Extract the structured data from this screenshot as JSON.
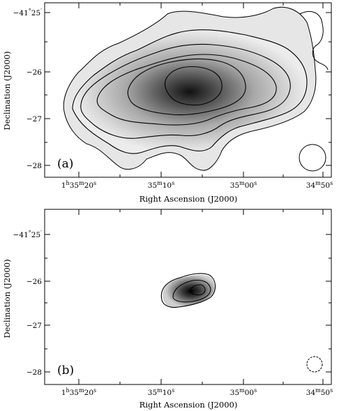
{
  "figure": {
    "panels": [
      {
        "id": "a",
        "label": "(a)",
        "xlabel": "Right Ascension (J2000)",
        "ylabel": "Declination (J2000)",
        "x_ticks": [
          {
            "main": "1",
            "sup1": "h",
            "mid": "35",
            "sup2": "m",
            "end": "20",
            "sup3": "s"
          },
          {
            "main": "",
            "sup1": "",
            "mid": "35",
            "sup2": "m",
            "end": "10",
            "sup3": "s"
          },
          {
            "main": "",
            "sup1": "",
            "mid": "35",
            "sup2": "m",
            "end": "00",
            "sup3": "s"
          },
          {
            "main": "",
            "sup1": "",
            "mid": "34",
            "sup2": "m",
            "end": "50",
            "sup3": "s"
          }
        ],
        "y_ticks": [
          {
            "main": "−41",
            "sup1": "°",
            "end": "25",
            "sup2": "′"
          },
          {
            "main": "−26",
            "sup1": "",
            "end": "",
            "sup2": ""
          },
          {
            "main": "−27",
            "sup1": "",
            "end": "",
            "sup2": ""
          },
          {
            "main": "−28",
            "sup1": "",
            "end": "",
            "sup2": ""
          }
        ]
      },
      {
        "id": "b",
        "label": "(b)",
        "xlabel": "Right Ascension (J2000)",
        "ylabel": "Declination (J2000)",
        "x_ticks": [
          {
            "main": "1",
            "sup1": "h",
            "mid": "35",
            "sup2": "m",
            "end": "20",
            "sup3": "s"
          },
          {
            "main": "",
            "sup1": "",
            "mid": "35",
            "sup2": "m",
            "end": "10",
            "sup3": "s"
          },
          {
            "main": "",
            "sup1": "",
            "mid": "35",
            "sup2": "m",
            "end": "00",
            "sup3": "s"
          },
          {
            "main": "",
            "sup1": "",
            "mid": "34",
            "sup2": "m",
            "end": "50",
            "sup3": "s"
          }
        ],
        "y_ticks": [
          {
            "main": "−41",
            "sup1": "°",
            "end": "25",
            "sup2": "′"
          },
          {
            "main": "−26",
            "sup1": "",
            "end": "",
            "sup2": ""
          },
          {
            "main": "−27",
            "sup1": "",
            "end": "",
            "sup2": ""
          },
          {
            "main": "−28",
            "sup1": "",
            "end": "",
            "sup2": ""
          }
        ]
      }
    ]
  }
}
